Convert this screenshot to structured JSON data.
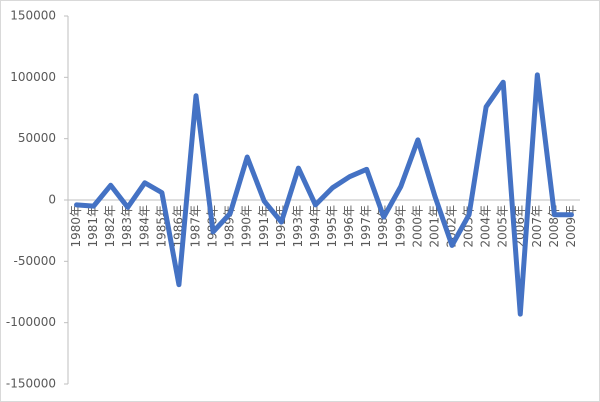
{
  "chart_data": {
    "type": "line",
    "categories": [
      "1980年",
      "1981年",
      "1982年",
      "1983年",
      "1984年",
      "1985年",
      "1986年",
      "1987年",
      "1988年",
      "1989年",
      "1990年",
      "1991年",
      "1992年",
      "1993年",
      "1994年",
      "1995年",
      "1996年",
      "1997年",
      "1998年",
      "1999年",
      "2000年",
      "2001年",
      "2002年",
      "2003年",
      "2004年",
      "2005年",
      "2006年",
      "2007年",
      "2008年",
      "2009年"
    ],
    "values": [
      -4000,
      -5000,
      12000,
      -6000,
      14000,
      6000,
      -69000,
      85000,
      -26000,
      -11000,
      35000,
      -1000,
      -18000,
      26000,
      -4000,
      10000,
      19000,
      25000,
      -14000,
      11000,
      49000,
      3000,
      -37000,
      -12000,
      76000,
      96000,
      -93000,
      102000,
      -12000,
      -12000
    ],
    "color": "#4472c4",
    "ylim": [
      -150000,
      150000
    ],
    "yticks": [
      -150000,
      -100000,
      -50000,
      0,
      50000,
      100000,
      150000
    ],
    "grid": false
  }
}
